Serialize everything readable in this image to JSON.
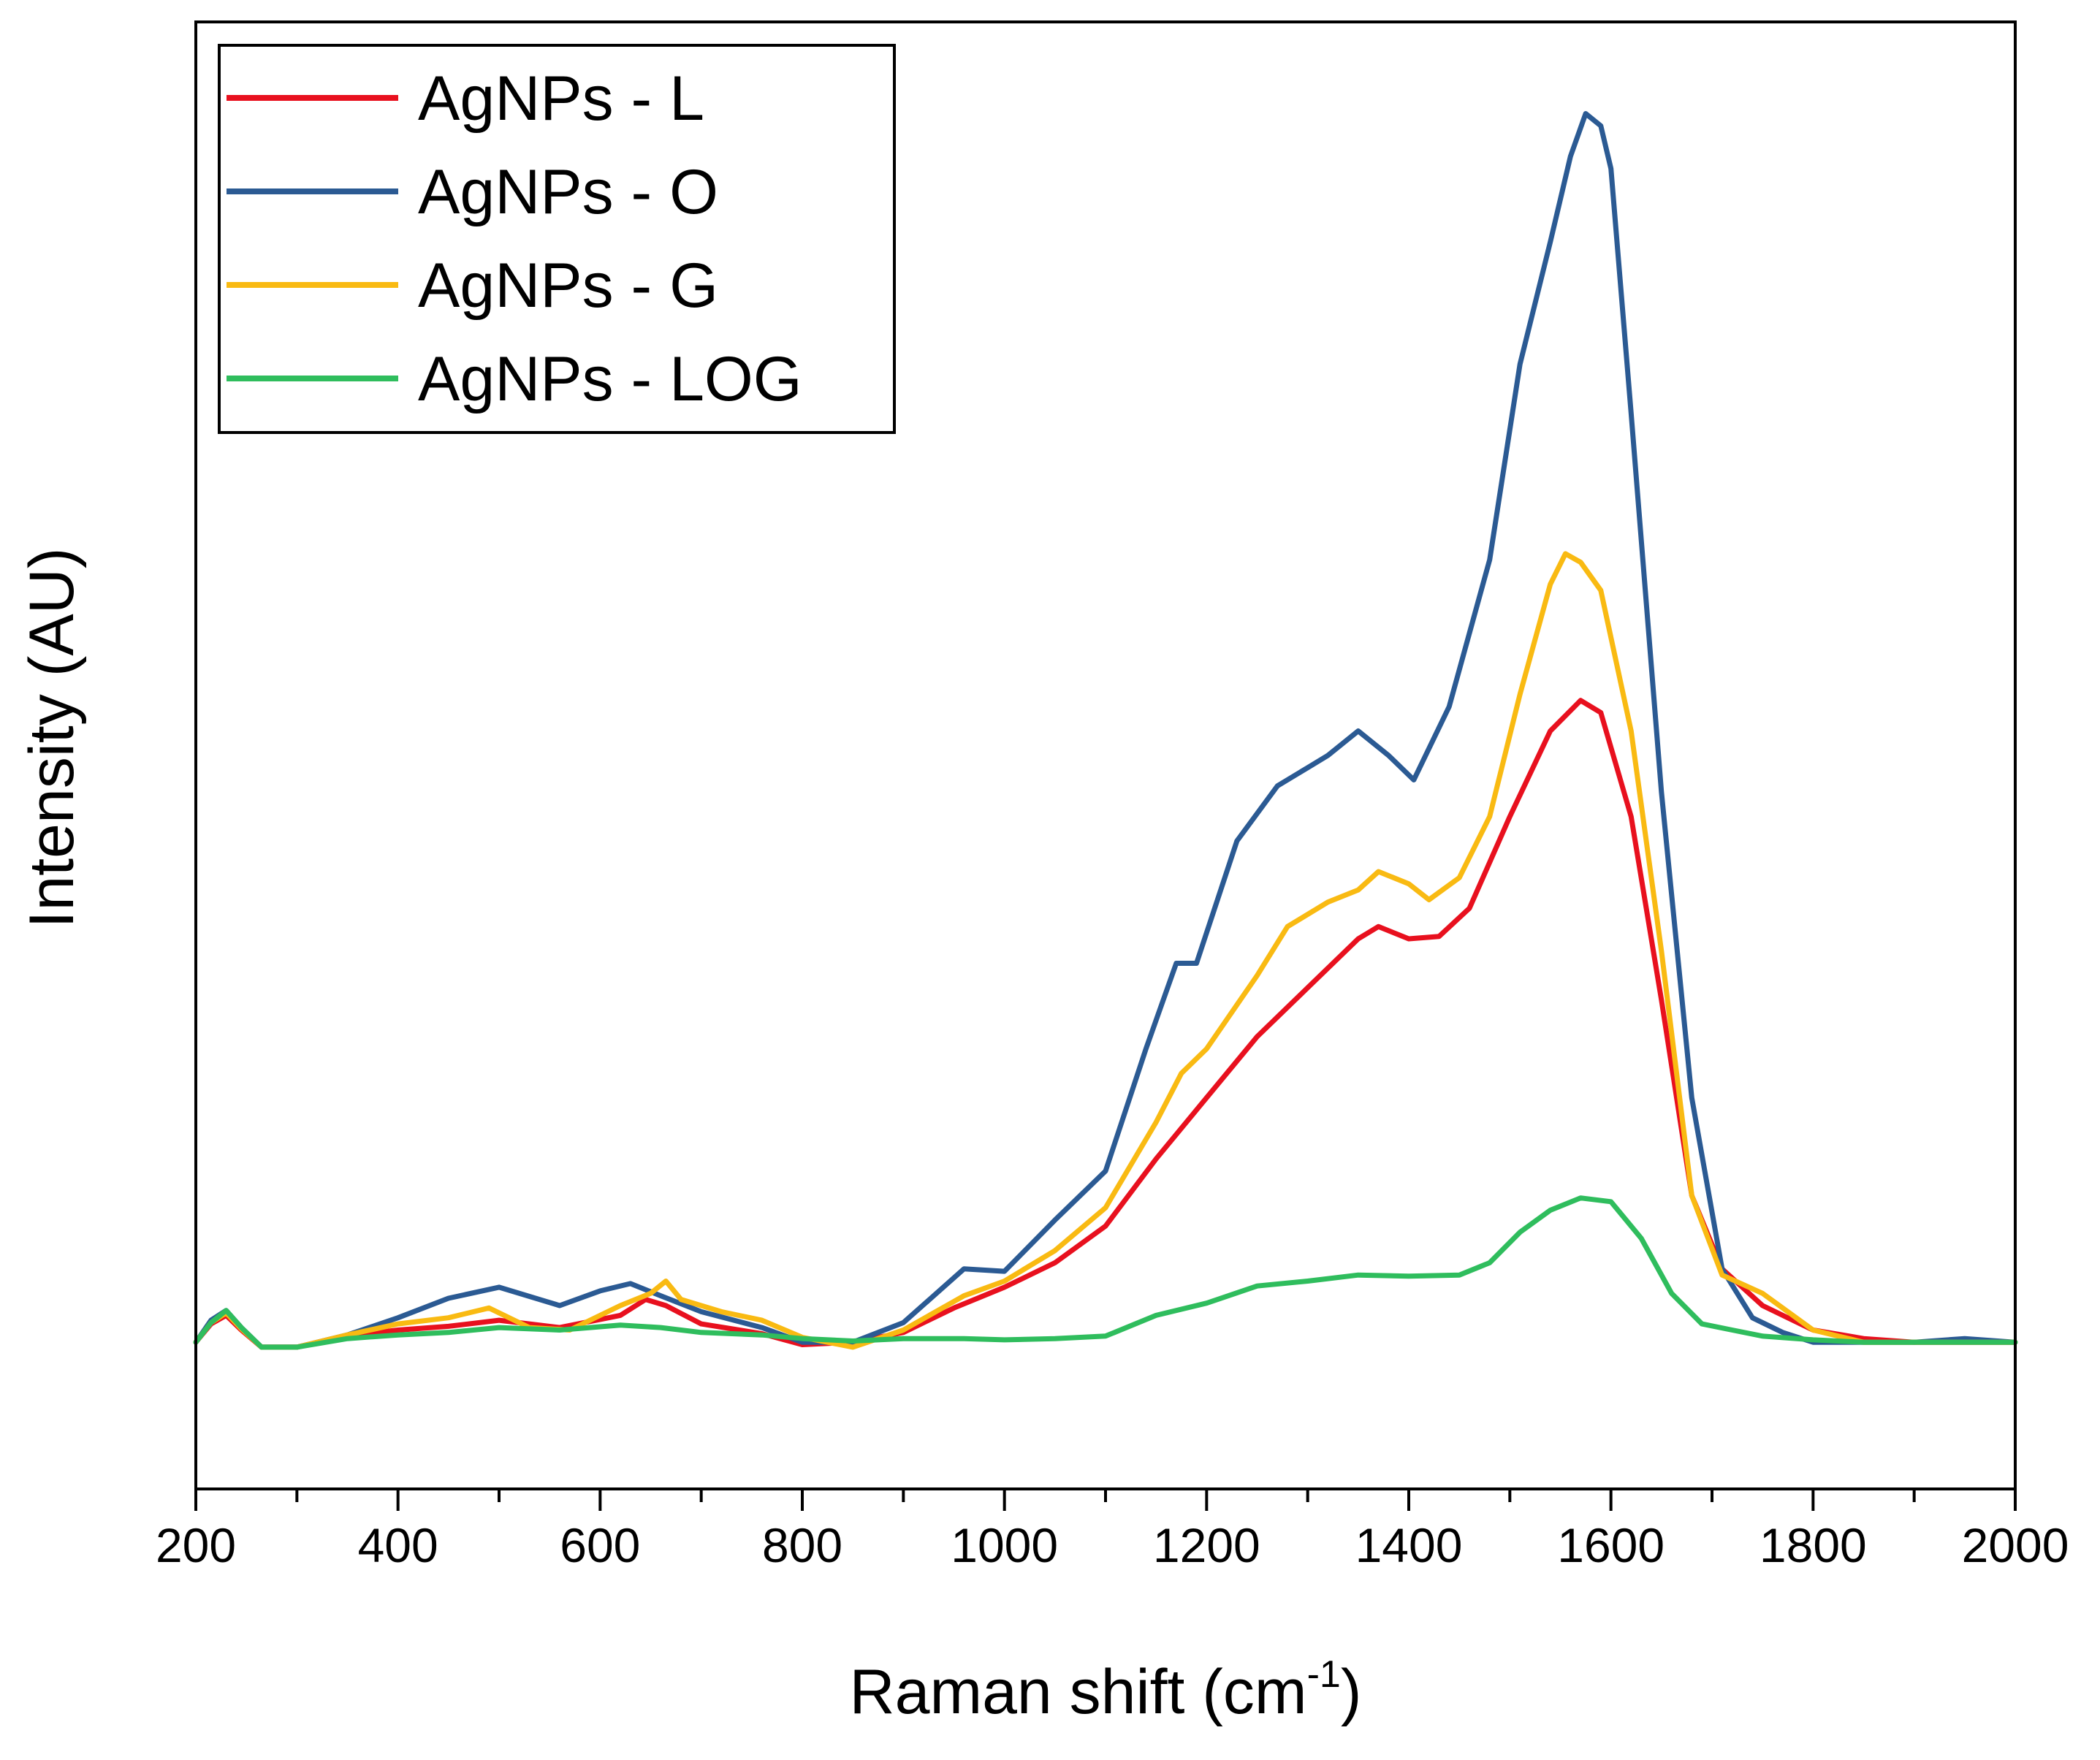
{
  "chart_data": {
    "type": "line",
    "title": "",
    "xlabel": "Raman shift (cm",
    "xlabel_superscript": "-1",
    "xlabel_suffix": ")",
    "ylabel": "Intensity (AU)",
    "xlim": [
      200,
      2000
    ],
    "ylim": [
      -0.12,
      1.08
    ],
    "x_ticks": [
      "200",
      "400",
      "600",
      "800",
      "1000",
      "1200",
      "1400",
      "1600",
      "1800",
      "2000"
    ],
    "legend_position": "top-left",
    "grid": false,
    "series": [
      {
        "name": "AgNPs - L",
        "color": "#e8101e",
        "points": [
          [
            200,
            0.0
          ],
          [
            215,
            0.015
          ],
          [
            230,
            0.022
          ],
          [
            245,
            0.01
          ],
          [
            265,
            -0.004
          ],
          [
            300,
            -0.004
          ],
          [
            350,
            0.005
          ],
          [
            400,
            0.01
          ],
          [
            450,
            0.013
          ],
          [
            500,
            0.018
          ],
          [
            560,
            0.012
          ],
          [
            620,
            0.022
          ],
          [
            645,
            0.035
          ],
          [
            665,
            0.03
          ],
          [
            700,
            0.015
          ],
          [
            760,
            0.007
          ],
          [
            800,
            -0.002
          ],
          [
            850,
            0.0
          ],
          [
            900,
            0.008
          ],
          [
            950,
            0.028
          ],
          [
            1000,
            0.045
          ],
          [
            1050,
            0.065
          ],
          [
            1100,
            0.095
          ],
          [
            1150,
            0.15
          ],
          [
            1200,
            0.2
          ],
          [
            1250,
            0.25
          ],
          [
            1300,
            0.29
          ],
          [
            1350,
            0.33
          ],
          [
            1370,
            0.34
          ],
          [
            1400,
            0.33
          ],
          [
            1430,
            0.332
          ],
          [
            1460,
            0.355
          ],
          [
            1500,
            0.43
          ],
          [
            1540,
            0.5
          ],
          [
            1570,
            0.525
          ],
          [
            1590,
            0.515
          ],
          [
            1620,
            0.43
          ],
          [
            1650,
            0.28
          ],
          [
            1680,
            0.12
          ],
          [
            1710,
            0.06
          ],
          [
            1750,
            0.03
          ],
          [
            1800,
            0.01
          ],
          [
            1850,
            0.003
          ],
          [
            1900,
            0.0
          ],
          [
            1950,
            0.0
          ],
          [
            2000,
            0.0
          ]
        ]
      },
      {
        "name": "AgNPs - O",
        "color": "#2b5a93",
        "points": [
          [
            200,
            0.0
          ],
          [
            215,
            0.018
          ],
          [
            230,
            0.026
          ],
          [
            245,
            0.012
          ],
          [
            265,
            -0.004
          ],
          [
            300,
            -0.004
          ],
          [
            350,
            0.006
          ],
          [
            400,
            0.02
          ],
          [
            450,
            0.036
          ],
          [
            500,
            0.045
          ],
          [
            560,
            0.03
          ],
          [
            600,
            0.042
          ],
          [
            630,
            0.048
          ],
          [
            660,
            0.038
          ],
          [
            700,
            0.025
          ],
          [
            760,
            0.012
          ],
          [
            800,
            0.0
          ],
          [
            850,
            0.0
          ],
          [
            900,
            0.016
          ],
          [
            960,
            0.06
          ],
          [
            1000,
            0.058
          ],
          [
            1050,
            0.1
          ],
          [
            1100,
            0.14
          ],
          [
            1140,
            0.24
          ],
          [
            1170,
            0.31
          ],
          [
            1190,
            0.31
          ],
          [
            1230,
            0.41
          ],
          [
            1270,
            0.455
          ],
          [
            1300,
            0.47
          ],
          [
            1320,
            0.48
          ],
          [
            1350,
            0.5
          ],
          [
            1380,
            0.48
          ],
          [
            1405,
            0.46
          ],
          [
            1440,
            0.52
          ],
          [
            1480,
            0.64
          ],
          [
            1510,
            0.8
          ],
          [
            1540,
            0.9
          ],
          [
            1560,
            0.97
          ],
          [
            1575,
            1.005
          ],
          [
            1590,
            0.995
          ],
          [
            1600,
            0.96
          ],
          [
            1620,
            0.76
          ],
          [
            1650,
            0.45
          ],
          [
            1680,
            0.2
          ],
          [
            1710,
            0.06
          ],
          [
            1740,
            0.02
          ],
          [
            1770,
            0.008
          ],
          [
            1800,
            0.0
          ],
          [
            1850,
            0.0
          ],
          [
            1900,
            0.0
          ],
          [
            1950,
            0.003
          ],
          [
            2000,
            0.0
          ]
        ]
      },
      {
        "name": "AgNPs - G",
        "color": "#f9ba12",
        "points": [
          [
            200,
            0.0
          ],
          [
            215,
            0.016
          ],
          [
            230,
            0.024
          ],
          [
            245,
            0.011
          ],
          [
            265,
            -0.004
          ],
          [
            300,
            -0.004
          ],
          [
            350,
            0.006
          ],
          [
            400,
            0.015
          ],
          [
            450,
            0.02
          ],
          [
            490,
            0.028
          ],
          [
            530,
            0.012
          ],
          [
            570,
            0.01
          ],
          [
            620,
            0.03
          ],
          [
            650,
            0.04
          ],
          [
            665,
            0.05
          ],
          [
            680,
            0.035
          ],
          [
            720,
            0.025
          ],
          [
            760,
            0.018
          ],
          [
            800,
            0.004
          ],
          [
            850,
            -0.004
          ],
          [
            900,
            0.01
          ],
          [
            960,
            0.038
          ],
          [
            1000,
            0.05
          ],
          [
            1050,
            0.075
          ],
          [
            1100,
            0.11
          ],
          [
            1150,
            0.18
          ],
          [
            1175,
            0.22
          ],
          [
            1200,
            0.24
          ],
          [
            1250,
            0.3
          ],
          [
            1280,
            0.34
          ],
          [
            1320,
            0.36
          ],
          [
            1350,
            0.37
          ],
          [
            1370,
            0.385
          ],
          [
            1400,
            0.375
          ],
          [
            1420,
            0.362
          ],
          [
            1450,
            0.38
          ],
          [
            1480,
            0.43
          ],
          [
            1510,
            0.53
          ],
          [
            1540,
            0.62
          ],
          [
            1555,
            0.645
          ],
          [
            1570,
            0.638
          ],
          [
            1590,
            0.615
          ],
          [
            1620,
            0.5
          ],
          [
            1650,
            0.32
          ],
          [
            1680,
            0.12
          ],
          [
            1710,
            0.055
          ],
          [
            1750,
            0.04
          ],
          [
            1800,
            0.01
          ],
          [
            1850,
            0.0
          ],
          [
            1900,
            0.0
          ],
          [
            1950,
            0.0
          ],
          [
            2000,
            0.0
          ]
        ]
      },
      {
        "name": "AgNPs - LOG",
        "color": "#2fbd5d",
        "points": [
          [
            200,
            0.0
          ],
          [
            215,
            0.016
          ],
          [
            230,
            0.026
          ],
          [
            245,
            0.012
          ],
          [
            265,
            -0.004
          ],
          [
            300,
            -0.004
          ],
          [
            350,
            0.003
          ],
          [
            400,
            0.006
          ],
          [
            450,
            0.008
          ],
          [
            500,
            0.012
          ],
          [
            560,
            0.01
          ],
          [
            620,
            0.014
          ],
          [
            660,
            0.012
          ],
          [
            700,
            0.008
          ],
          [
            760,
            0.006
          ],
          [
            800,
            0.003
          ],
          [
            850,
            0.001
          ],
          [
            900,
            0.003
          ],
          [
            960,
            0.003
          ],
          [
            1000,
            0.002
          ],
          [
            1050,
            0.003
          ],
          [
            1100,
            0.005
          ],
          [
            1150,
            0.022
          ],
          [
            1200,
            0.032
          ],
          [
            1250,
            0.046
          ],
          [
            1300,
            0.05
          ],
          [
            1350,
            0.055
          ],
          [
            1400,
            0.054
          ],
          [
            1450,
            0.055
          ],
          [
            1480,
            0.065
          ],
          [
            1510,
            0.09
          ],
          [
            1540,
            0.108
          ],
          [
            1570,
            0.118
          ],
          [
            1600,
            0.115
          ],
          [
            1630,
            0.085
          ],
          [
            1660,
            0.04
          ],
          [
            1690,
            0.015
          ],
          [
            1720,
            0.01
          ],
          [
            1750,
            0.005
          ],
          [
            1800,
            0.002
          ],
          [
            1850,
            0.0
          ],
          [
            1900,
            0.0
          ],
          [
            2000,
            0.0
          ]
        ]
      }
    ]
  }
}
